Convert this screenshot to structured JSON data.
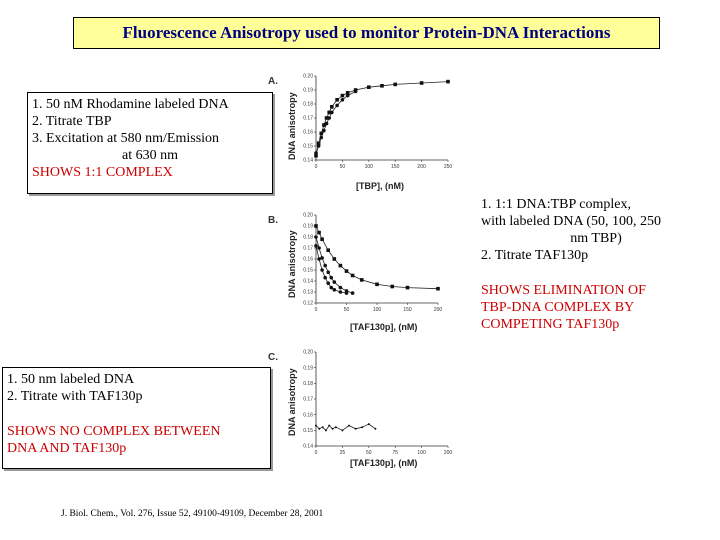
{
  "title": "Fluorescence Anisotropy used to monitor Protein-DNA Interactions",
  "box_a": {
    "line1": "1. 50 nM Rhodamine labeled DNA",
    "line2": "2. Titrate TBP",
    "line3": "3. Excitation at 580 nm/Emission",
    "line4": "at 630 nm",
    "line5": "SHOWS 1:1 COMPLEX"
  },
  "box_b": {
    "line1": "1. 1:1 DNA:TBP complex,",
    "line2": "with labeled DNA (50, 100, 250",
    "line3": "nm TBP)",
    "line4": "2. Titrate TAF130p",
    "line5": "SHOWS ELIMINATION OF",
    "line6": "TBP-DNA COMPLEX BY",
    "line7": "COMPETING TAF130p"
  },
  "box_c": {
    "line1": "1. 50 nm labeled DNA",
    "line2": "2. Titrate with TAF130p",
    "line3": "SHOWS NO COMPLEX BETWEEN",
    "line4": "DNA AND TAF130p"
  },
  "citation": "J. Biol. Chem., Vol. 276, Issue 52, 49100-49109, December 28, 2001",
  "colors": {
    "title_bg": "#ffff99",
    "title_text": "#000080",
    "emphasis": "#cc0000"
  },
  "chart_data": [
    {
      "type": "scatter",
      "panel": "A.",
      "xlabel": "[TBP], (nM)",
      "ylabel": "DNA anisotropy",
      "xlim": [
        0,
        250
      ],
      "ylim": [
        0.14,
        0.2
      ],
      "xticks": [
        "0",
        "50",
        "100",
        "150",
        "200",
        "250"
      ],
      "yticks": [
        "0.14",
        "0.15",
        "0.16",
        "0.17",
        "0.18",
        "0.19",
        "0.20"
      ],
      "series": [
        {
          "x": [
            0,
            5,
            10,
            15,
            20,
            25,
            30,
            40,
            50,
            60,
            75,
            100,
            125,
            150,
            200,
            250
          ],
          "y": [
            0.143,
            0.152,
            0.159,
            0.165,
            0.17,
            0.174,
            0.178,
            0.183,
            0.186,
            0.188,
            0.19,
            0.192,
            0.193,
            0.194,
            0.195,
            0.196
          ]
        },
        {
          "x": [
            0,
            5,
            10,
            15,
            20,
            25,
            30,
            40,
            50,
            60,
            75
          ],
          "y": [
            0.145,
            0.15,
            0.156,
            0.161,
            0.166,
            0.17,
            0.174,
            0.179,
            0.183,
            0.186,
            0.189
          ]
        }
      ]
    },
    {
      "type": "scatter",
      "panel": "B.",
      "xlabel": "[TAF130p], (nM)",
      "ylabel": "DNA anisotropy",
      "xlim": [
        0,
        200
      ],
      "ylim": [
        0.12,
        0.2
      ],
      "xticks": [
        "0",
        "50",
        "100",
        "150",
        "200"
      ],
      "yticks": [
        "0.12",
        "0.13",
        "0.14",
        "0.15",
        "0.16",
        "0.17",
        "0.18",
        "0.19",
        "0.20"
      ],
      "series": [
        {
          "x": [
            0,
            5,
            10,
            20,
            30,
            40,
            50,
            60,
            75,
            100,
            125,
            150,
            200
          ],
          "y": [
            0.19,
            0.184,
            0.178,
            0.168,
            0.16,
            0.154,
            0.149,
            0.145,
            0.141,
            0.137,
            0.135,
            0.134,
            0.133
          ]
        },
        {
          "x": [
            0,
            5,
            10,
            15,
            20,
            25,
            30,
            40,
            50,
            60
          ],
          "y": [
            0.18,
            0.17,
            0.161,
            0.154,
            0.148,
            0.143,
            0.139,
            0.134,
            0.131,
            0.129
          ]
        },
        {
          "x": [
            0,
            5,
            10,
            15,
            20,
            25,
            30,
            40,
            50
          ],
          "y": [
            0.172,
            0.16,
            0.15,
            0.143,
            0.138,
            0.134,
            0.132,
            0.13,
            0.129
          ]
        }
      ]
    },
    {
      "type": "scatter",
      "panel": "C.",
      "xlabel": "[TAF130p], (nM)",
      "ylabel": "DNA anisotropy",
      "xlim": [
        0,
        200
      ],
      "ylim": [
        0.14,
        0.2
      ],
      "xticks": [
        "0",
        "25",
        "50",
        "75",
        "100",
        "200"
      ],
      "yticks": [
        "0.14",
        "0.15",
        "0.16",
        "0.17",
        "0.18",
        "0.19",
        "0.20"
      ],
      "series": [
        {
          "x": [
            0,
            5,
            10,
            15,
            20,
            25,
            30,
            40,
            50,
            60,
            70,
            80,
            90
          ],
          "y": [
            0.153,
            0.151,
            0.152,
            0.15,
            0.153,
            0.151,
            0.152,
            0.15,
            0.153,
            0.151,
            0.152,
            0.154,
            0.151
          ]
        }
      ]
    }
  ]
}
